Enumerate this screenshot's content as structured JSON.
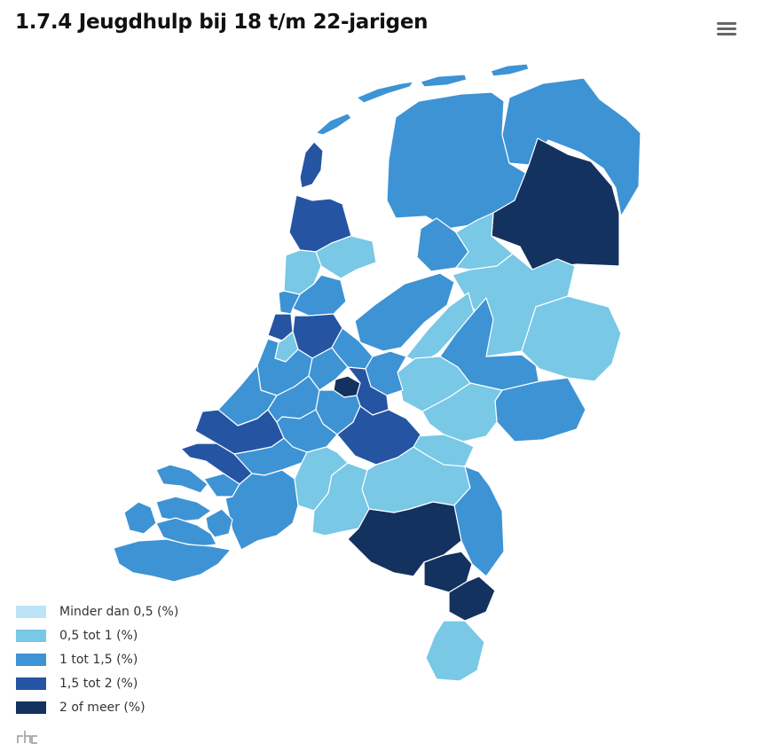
{
  "title": "1.7.4 Jeugdhulp bij 18 t/m 22-jarigen",
  "menu": {
    "icon": "hamburger-menu-icon"
  },
  "colors": {
    "minder_dan_0_5": "#bde3f7",
    "0_5_tot_1": "#78c8e6",
    "1_tot_1_5": "#3d93d4",
    "1_5_tot_2": "#2554a3",
    "2_of_meer": "#14325f"
  },
  "legend": [
    {
      "label": "Minder dan 0,5 (%)",
      "color": "#bde3f7"
    },
    {
      "label": "0,5 tot 1 (%)",
      "color": "#78c8e6"
    },
    {
      "label": "1 tot 1,5 (%)",
      "color": "#3d93d4"
    },
    {
      "label": "1,5 tot 2 (%)",
      "color": "#2554a3"
    },
    {
      "label": "2 of meer (%)",
      "color": "#14325f"
    }
  ],
  "logo": {
    "icon": "cbs-logo-icon"
  }
}
